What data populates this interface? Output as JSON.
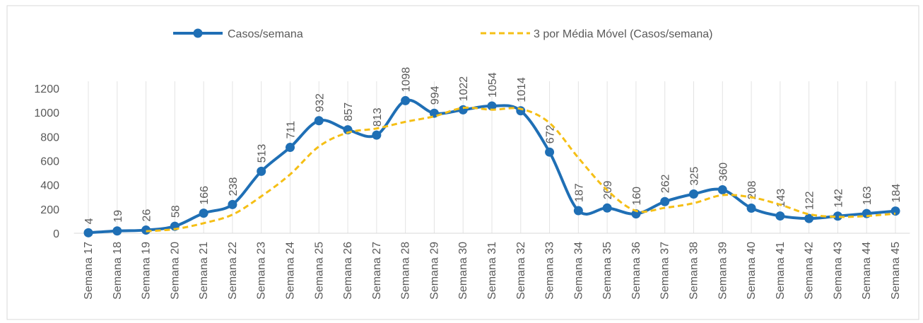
{
  "chart_data": {
    "type": "line",
    "categories": [
      "Semana 17",
      "Semana 18",
      "Semana 19",
      "Semana 20",
      "Semana 21",
      "Semana 22",
      "Semana 23",
      "Semana 24",
      "Semana 25",
      "Semana 26",
      "Semana 27",
      "Semana 28",
      "Semana 29",
      "Semana 30",
      "Semana 31",
      "Semana 32",
      "Semana 33",
      "Semana 34",
      "Semana 35",
      "Semana 36",
      "Semana 37",
      "Semana 38",
      "Semana 39",
      "Semana 40",
      "Semana 41",
      "Semana 42",
      "Semana 43",
      "Semana 44",
      "Semana 45"
    ],
    "series": [
      {
        "name": "Casos/semana",
        "color": "#1f6fb5",
        "style": "solid",
        "markers": true,
        "data_labels": true,
        "values": [
          4,
          19,
          26,
          58,
          166,
          238,
          513,
          711,
          932,
          857,
          813,
          1098,
          994,
          1022,
          1054,
          1014,
          672,
          187,
          209,
          160,
          262,
          325,
          360,
          208,
          143,
          122,
          142,
          163,
          184
        ]
      },
      {
        "name": "3 por Média Móvel (Casos/semana)",
        "color": "#f5bf16",
        "style": "dashed",
        "markers": false,
        "data_labels": false,
        "values": [
          null,
          null,
          16.3,
          34.3,
          83.3,
          154,
          305.7,
          487.3,
          718.7,
          833.3,
          867.3,
          922.7,
          968.3,
          1038,
          1023.3,
          1030,
          913.3,
          624.3,
          356,
          185.3,
          210.3,
          249,
          315.7,
          297.7,
          237,
          157.7,
          135.7,
          142.3,
          163
        ]
      }
    ],
    "ylim": [
      0,
      1200
    ],
    "yticks": [
      0,
      200,
      400,
      600,
      800,
      1000,
      1200
    ],
    "grid": false,
    "legend": "top"
  }
}
